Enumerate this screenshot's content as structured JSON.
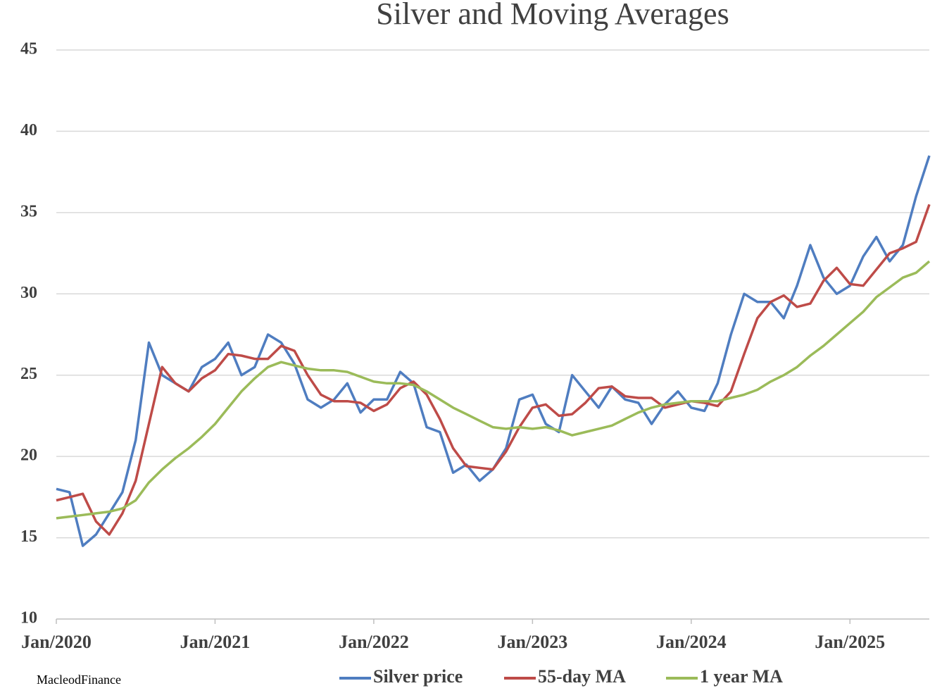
{
  "chart_data": {
    "type": "line",
    "title": "Silver and Moving Averages",
    "source": "MacleodFinance",
    "x": [
      "2020-01",
      "2020-02",
      "2020-03",
      "2020-04",
      "2020-05",
      "2020-06",
      "2020-07",
      "2020-08",
      "2020-09",
      "2020-10",
      "2020-11",
      "2020-12",
      "2021-01",
      "2021-02",
      "2021-03",
      "2021-04",
      "2021-05",
      "2021-06",
      "2021-07",
      "2021-08",
      "2021-09",
      "2021-10",
      "2021-11",
      "2021-12",
      "2022-01",
      "2022-02",
      "2022-03",
      "2022-04",
      "2022-05",
      "2022-06",
      "2022-07",
      "2022-08",
      "2022-09",
      "2022-10",
      "2022-11",
      "2022-12",
      "2023-01",
      "2023-02",
      "2023-03",
      "2023-04",
      "2023-05",
      "2023-06",
      "2023-07",
      "2023-08",
      "2023-09",
      "2023-10",
      "2023-11",
      "2023-12",
      "2024-01",
      "2024-02",
      "2024-03",
      "2024-04",
      "2024-05",
      "2024-06",
      "2024-07",
      "2024-08",
      "2024-09",
      "2024-10",
      "2024-11",
      "2024-12",
      "2025-01",
      "2025-02",
      "2025-03",
      "2025-04",
      "2025-05",
      "2025-06",
      "2025-07"
    ],
    "series": [
      {
        "name": "Silver price",
        "color": "#4f7dc0",
        "values": [
          18,
          17.8,
          14.5,
          15.2,
          16.5,
          17.8,
          21,
          27,
          25,
          24.5,
          24,
          25.5,
          26,
          27,
          25,
          25.5,
          27.5,
          27,
          25.7,
          23.5,
          23,
          23.5,
          24.5,
          22.7,
          23.5,
          23.5,
          25.2,
          24.5,
          21.8,
          21.5,
          19,
          19.5,
          18.5,
          19.2,
          20.5,
          23.5,
          23.8,
          22,
          21.5,
          25,
          24,
          23,
          24.3,
          23.5,
          23.3,
          22,
          23.2,
          24,
          23,
          22.8,
          24.5,
          27.5,
          30,
          29.5,
          29.5,
          28.5,
          30.5,
          33,
          31,
          30,
          30.5,
          32.3,
          33.5,
          32,
          33,
          36,
          38.5
        ]
      },
      {
        "name": "55-day MA",
        "color": "#be4b48",
        "values": [
          17.3,
          17.5,
          17.7,
          16,
          15.2,
          16.5,
          18.5,
          22,
          25.5,
          24.5,
          24,
          24.8,
          25.3,
          26.3,
          26.2,
          26,
          26,
          26.8,
          26.5,
          25,
          23.8,
          23.4,
          23.4,
          23.3,
          22.8,
          23.2,
          24.2,
          24.6,
          23.8,
          22.3,
          20.5,
          19.4,
          19.3,
          19.2,
          20.3,
          21.8,
          23,
          23.2,
          22.5,
          22.6,
          23.3,
          24.2,
          24.3,
          23.7,
          23.6,
          23.6,
          23,
          23.2,
          23.4,
          23.3,
          23.1,
          24,
          26.3,
          28.5,
          29.5,
          29.9,
          29.2,
          29.4,
          30.8,
          31.6,
          30.6,
          30.5,
          31.5,
          32.5,
          32.8,
          33.2,
          35.5
        ]
      },
      {
        "name": "1 year MA",
        "color": "#9bbb59",
        "values": [
          16.2,
          16.3,
          16.4,
          16.5,
          16.6,
          16.8,
          17.3,
          18.4,
          19.2,
          19.9,
          20.5,
          21.2,
          22,
          23,
          24,
          24.8,
          25.5,
          25.8,
          25.6,
          25.4,
          25.3,
          25.3,
          25.2,
          24.9,
          24.6,
          24.5,
          24.5,
          24.4,
          24,
          23.5,
          23,
          22.6,
          22.2,
          21.8,
          21.7,
          21.8,
          21.7,
          21.8,
          21.6,
          21.3,
          21.5,
          21.7,
          21.9,
          22.3,
          22.7,
          23,
          23.2,
          23.3,
          23.4,
          23.4,
          23.4,
          23.6,
          23.8,
          24.1,
          24.6,
          25,
          25.5,
          26.2,
          26.8,
          27.5,
          28.2,
          28.9,
          29.8,
          30.4,
          31,
          31.3,
          32
        ]
      }
    ],
    "xlim": [
      "2020-01",
      "2025-07"
    ],
    "xticks": [
      {
        "value": "2020-01",
        "label": "Jan/2020"
      },
      {
        "value": "2021-01",
        "label": "Jan/2021"
      },
      {
        "value": "2022-01",
        "label": "Jan/2022"
      },
      {
        "value": "2023-01",
        "label": "Jan/2023"
      },
      {
        "value": "2024-01",
        "label": "Jan/2024"
      },
      {
        "value": "2025-01",
        "label": "Jan/2025"
      }
    ],
    "ylim": [
      10,
      45
    ],
    "yticks": [
      10,
      15,
      20,
      25,
      30,
      35,
      40,
      45
    ],
    "grid": true,
    "legend": "bottom"
  }
}
